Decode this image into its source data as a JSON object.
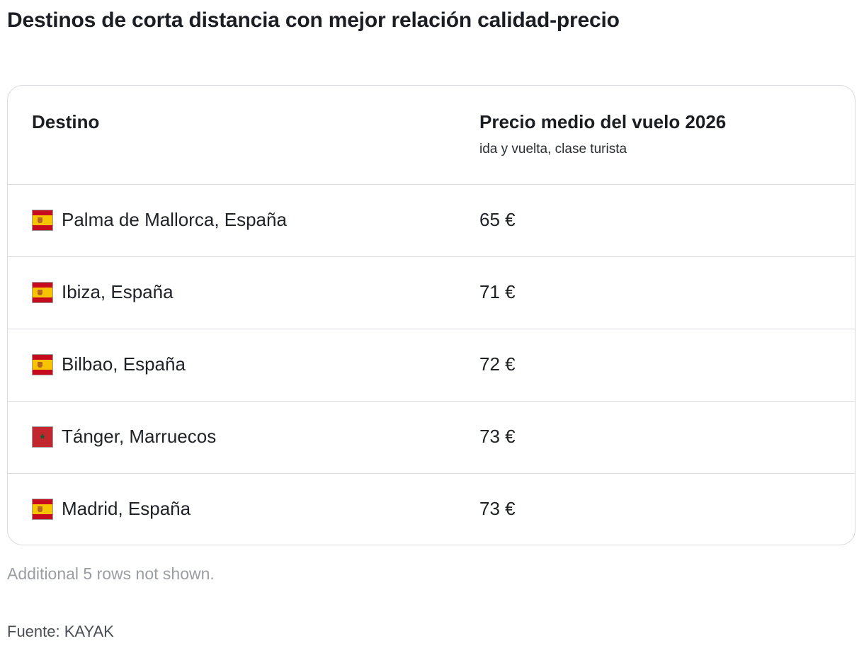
{
  "title": "Destinos de corta distancia con mejor relación calidad-precio",
  "chart_data": {
    "type": "table",
    "title": "Destinos de corta distancia con mejor relación calidad-precio",
    "columns": [
      {
        "label": "Destino",
        "sublabel": ""
      },
      {
        "label": "Precio medio del vuelo 2026",
        "sublabel": "ida y vuelta, clase turista"
      }
    ],
    "rows": [
      {
        "flag": "spain-flag-icon",
        "destination": "Palma de Mallorca, España",
        "price_label": "65 €",
        "price": 65
      },
      {
        "flag": "spain-flag-icon",
        "destination": "Ibiza, España",
        "price_label": "71 €",
        "price": 71
      },
      {
        "flag": "spain-flag-icon",
        "destination": "Bilbao, España",
        "price_label": "72 €",
        "price": 72
      },
      {
        "flag": "morocco-flag-icon",
        "destination": "Tánger, Marruecos",
        "price_label": "73 €",
        "price": 73
      },
      {
        "flag": "spain-flag-icon",
        "destination": "Madrid, España",
        "price_label": "73 €",
        "price": 73
      }
    ]
  },
  "footnote": "Additional 5 rows not shown.",
  "source": "Fuente: KAYAK",
  "colors": {
    "border": "#d8dadd",
    "text": "#1f2328",
    "muted": "#9a9ea3"
  }
}
